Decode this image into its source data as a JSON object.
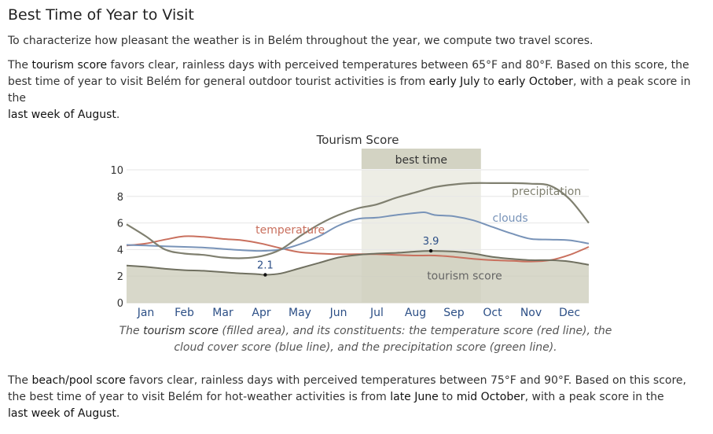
{
  "heading": "Best Time of Year to Visit",
  "intro": "To characterize how pleasant the weather is in Belém throughout the year, we compute two travel scores.",
  "tourism_paragraph": {
    "t1": "The ",
    "k1": "tourism score",
    "t2": " favors clear, rainless days with perceived temperatures between 65°F and 80°F. Based on this score, the best time of year to visit Belém for general outdoor tourist activities is from ",
    "k2": "early July",
    "t3": " to ",
    "k3": "early October",
    "t4": ", with a peak score in the ",
    "k4": "last week of August",
    "t5": "."
  },
  "caption": {
    "c1": "The ",
    "k1": "tourism score",
    "c2": " (filled area), and its constituents: the temperature score (red line), the cloud cover score (blue line), and the precipitation score (green line)."
  },
  "beach_paragraph": {
    "t1": "The ",
    "k1": "beach/pool score",
    "t2": " favors clear, rainless days with perceived temperatures between 75°F and 90°F. Based on this score, the best time of year to visit Belém for hot-weather activities is from ",
    "k2": "late June",
    "t3": " to ",
    "k3": "mid October",
    "t4": ", with a peak score in the ",
    "k4": "last week of August",
    "t5": "."
  },
  "chart_data": {
    "type": "area",
    "title": "Tourism Score",
    "x_unit": "month of year (0 = Jan 1, 12 = Dec 31)",
    "xlim": [
      0,
      12
    ],
    "ylim": [
      0,
      10
    ],
    "yticks": [
      0,
      2,
      4,
      6,
      8,
      10
    ],
    "months": [
      "Jan",
      "Feb",
      "Mar",
      "Apr",
      "May",
      "Jun",
      "Jul",
      "Aug",
      "Sep",
      "Oct",
      "Nov",
      "Dec"
    ],
    "best_time": {
      "label": "best time",
      "start": 6.1,
      "end": 9.2
    },
    "colors": {
      "area_fill": "#cbcbb8",
      "area_line": "#707060",
      "temperature": "#c9705e",
      "clouds": "#7893b8",
      "precipitation": "#808070",
      "band": "#d6d6c6",
      "band_label_bg": "#d3d3c3"
    },
    "series": [
      {
        "name": "tourism score",
        "x": [
          0,
          0.5,
          1,
          1.5,
          2,
          2.5,
          3,
          3.4,
          3.6,
          4,
          4.5,
          5,
          5.5,
          6,
          6.5,
          7,
          7.5,
          7.9,
          8.5,
          9,
          9.5,
          10,
          10.5,
          11,
          11.5,
          12
        ],
        "y": [
          2.8,
          2.7,
          2.55,
          2.45,
          2.4,
          2.3,
          2.2,
          2.15,
          2.1,
          2.2,
          2.6,
          3.0,
          3.4,
          3.6,
          3.7,
          3.75,
          3.85,
          3.9,
          3.85,
          3.7,
          3.45,
          3.3,
          3.2,
          3.2,
          3.1,
          2.85
        ]
      },
      {
        "name": "temperature",
        "x": [
          0,
          0.5,
          1,
          1.5,
          2,
          2.5,
          3,
          3.5,
          4,
          4.5,
          5,
          5.5,
          6,
          6.5,
          7,
          7.5,
          8,
          8.5,
          9,
          9.5,
          10,
          10.5,
          11,
          11.5,
          12
        ],
        "y": [
          4.3,
          4.45,
          4.75,
          5.0,
          4.95,
          4.8,
          4.7,
          4.45,
          4.1,
          3.8,
          3.7,
          3.65,
          3.65,
          3.65,
          3.6,
          3.55,
          3.55,
          3.45,
          3.3,
          3.2,
          3.15,
          3.1,
          3.2,
          3.6,
          4.2
        ]
      },
      {
        "name": "clouds",
        "x": [
          0,
          0.5,
          1,
          1.5,
          2,
          2.5,
          3,
          3.5,
          4,
          4.5,
          5,
          5.5,
          6,
          6.5,
          7,
          7.5,
          7.75,
          8,
          8.5,
          9,
          9.5,
          10,
          10.5,
          11,
          11.5,
          12
        ],
        "y": [
          4.35,
          4.3,
          4.25,
          4.2,
          4.15,
          4.05,
          3.95,
          3.9,
          4.0,
          4.4,
          5.0,
          5.8,
          6.3,
          6.4,
          6.6,
          6.75,
          6.8,
          6.6,
          6.5,
          6.2,
          5.7,
          5.2,
          4.8,
          4.75,
          4.7,
          4.45
        ]
      },
      {
        "name": "precipitation",
        "x": [
          0,
          0.5,
          1,
          1.5,
          2,
          2.5,
          3,
          3.5,
          4,
          4.5,
          5,
          5.5,
          6,
          6.5,
          7,
          7.5,
          8,
          8.5,
          9,
          9.5,
          10,
          10.5,
          11,
          11.5,
          12
        ],
        "y": [
          5.9,
          5.0,
          4.0,
          3.7,
          3.6,
          3.4,
          3.35,
          3.5,
          4.0,
          5.0,
          5.9,
          6.6,
          7.1,
          7.4,
          7.9,
          8.3,
          8.7,
          8.9,
          9.0,
          9.0,
          9.0,
          8.95,
          8.8,
          7.8,
          6.0
        ]
      }
    ],
    "annotations": [
      {
        "label": "2.1",
        "x": 3.6,
        "y": 2.1
      },
      {
        "label": "3.9",
        "x": 7.9,
        "y": 3.9
      }
    ],
    "series_labels": [
      {
        "series": "temperature",
        "label": "temperature",
        "x": 3.35,
        "y": 5.2
      },
      {
        "series": "clouds",
        "label": "clouds",
        "x": 9.5,
        "y": 6.1
      },
      {
        "series": "precipitation",
        "label": "precipitation",
        "x": 10.0,
        "y": 8.1
      },
      {
        "series": "tourism score",
        "label": "tourism score",
        "x": 7.8,
        "y": 1.75
      }
    ]
  }
}
